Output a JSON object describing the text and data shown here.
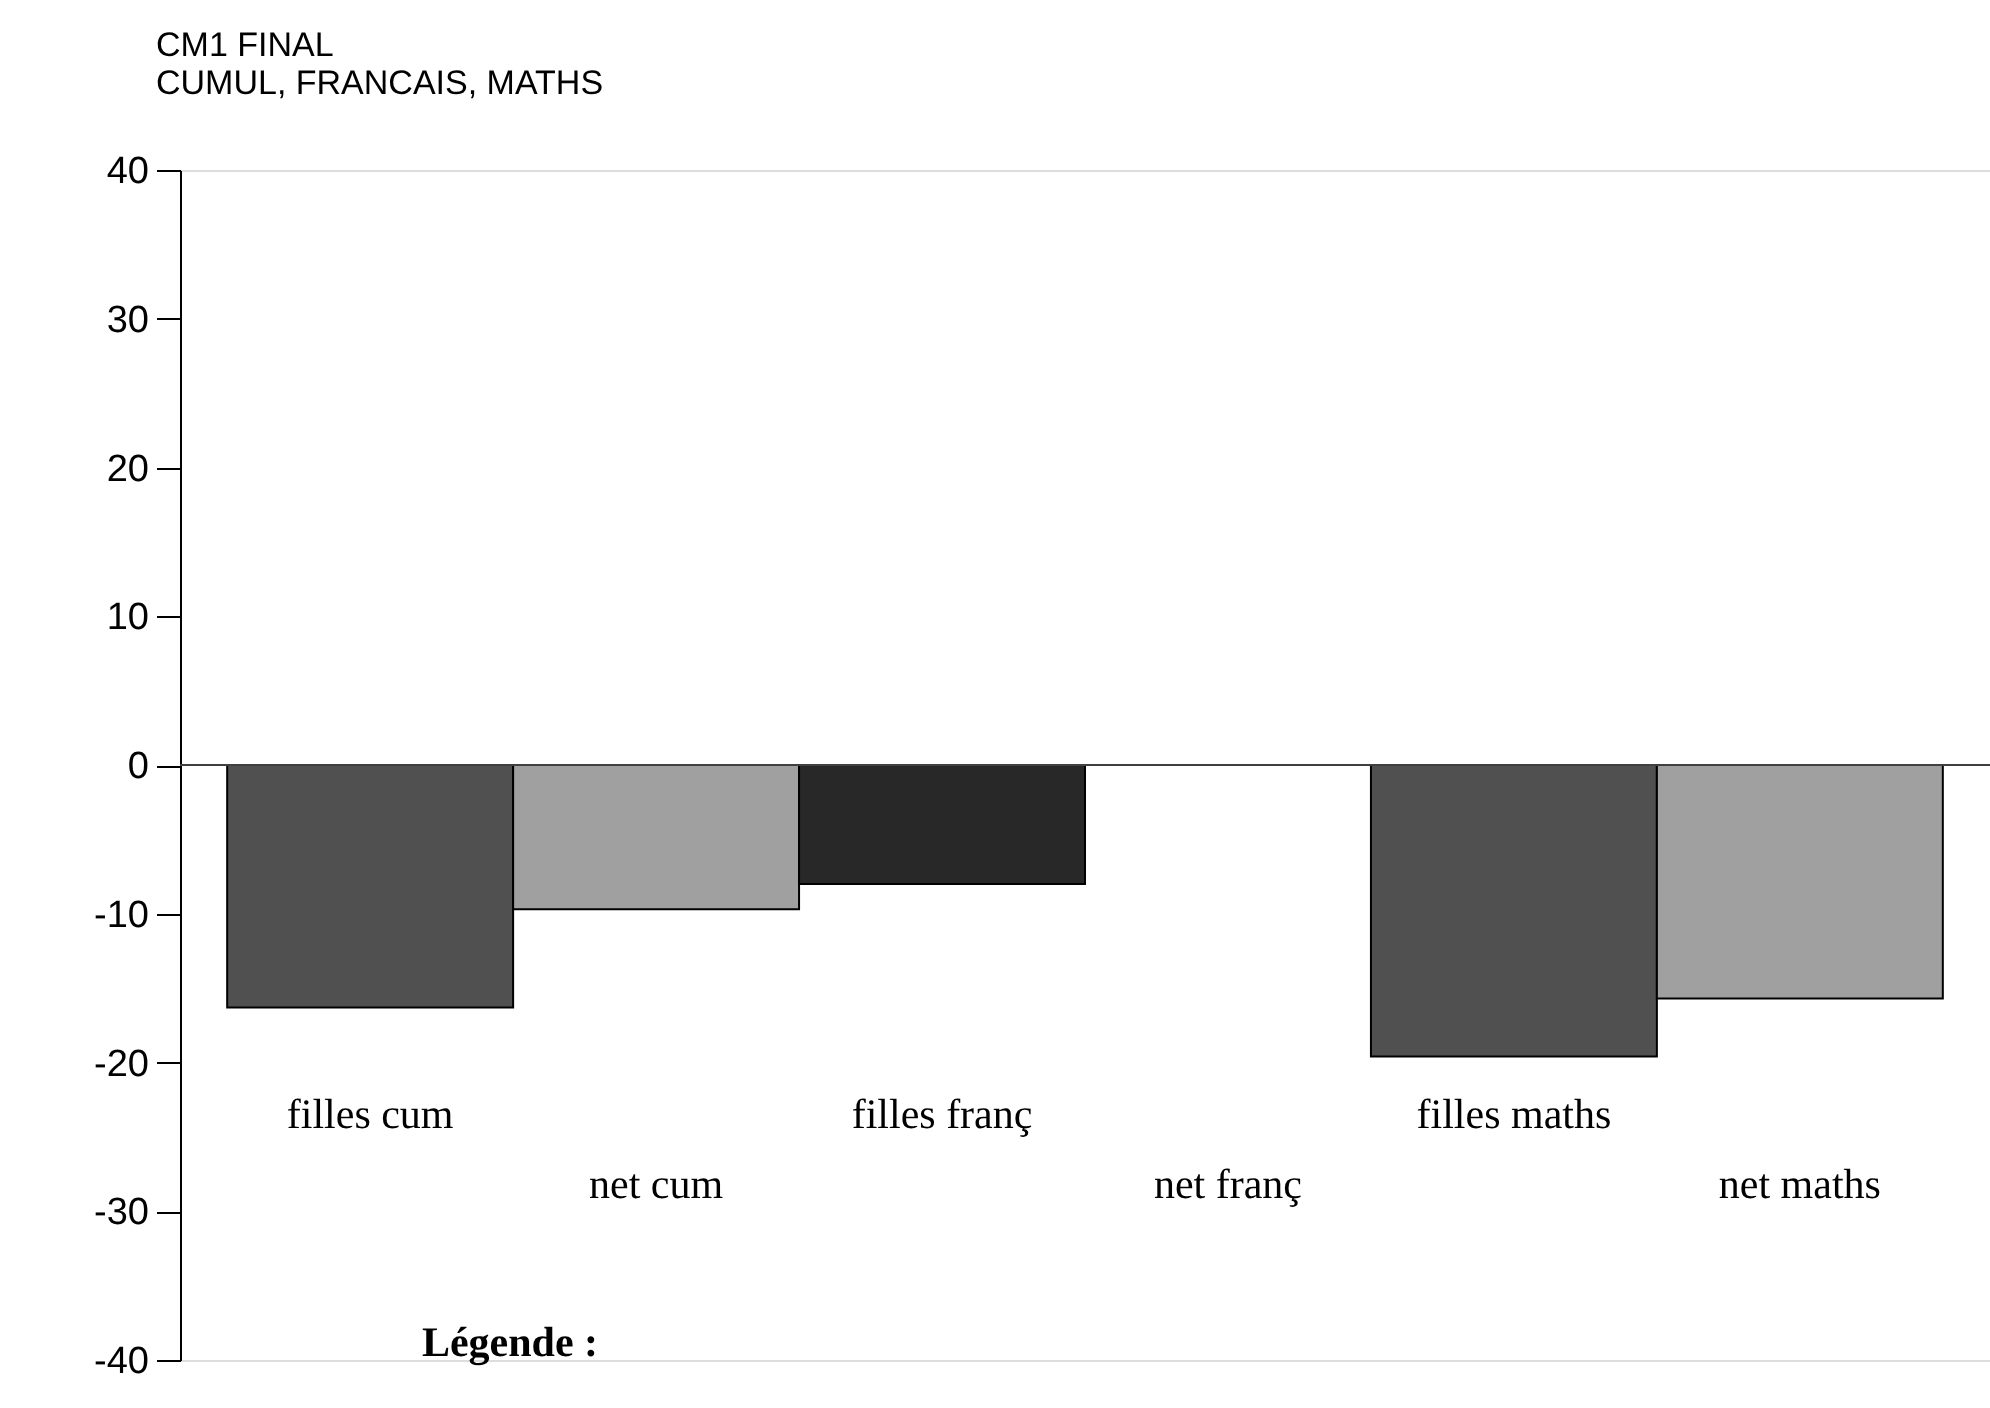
{
  "chart_data": {
    "type": "bar",
    "title": [
      "CM1 FINAL",
      "CUMUL, FRANCAIS, MATHS"
    ],
    "categories": [
      "filles cum",
      "net cum",
      "filles franç",
      "net franç",
      "filles maths",
      "net maths"
    ],
    "values": [
      -16.3,
      -9.7,
      -8.0,
      0,
      -19.6,
      -15.7
    ],
    "colors": [
      "#505050",
      "#a0a0a0",
      "#282828",
      null,
      "#505050",
      "#a0a0a0"
    ],
    "ylim": [
      -40,
      40
    ],
    "yticks": [
      -40,
      -30,
      -20,
      -10,
      0,
      10,
      20,
      30,
      40
    ],
    "ref_lines": [
      {
        "axis": "y",
        "value": 0,
        "color": "#404040"
      }
    ],
    "annotations": [
      "Légende :"
    ],
    "grid": false
  }
}
